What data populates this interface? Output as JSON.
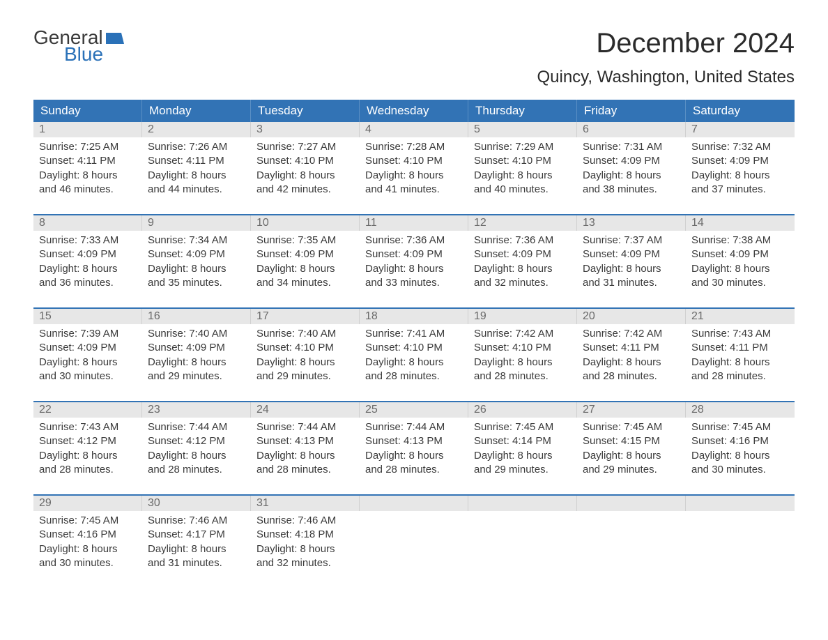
{
  "logo": {
    "line1": "General",
    "line2": "Blue"
  },
  "title": "December 2024",
  "location": "Quincy, Washington, United States",
  "colors": {
    "header_bg": "#3273b5",
    "header_text": "#ffffff",
    "daynum_bg": "#e7e7e7",
    "daynum_text": "#6a6a6a",
    "body_text": "#3a3a3a",
    "week_border": "#3273b5",
    "background": "#ffffff",
    "logo_blue": "#2a71b8"
  },
  "typography": {
    "title_fontsize": 40,
    "location_fontsize": 24,
    "dow_fontsize": 17,
    "daynum_fontsize": 16,
    "body_fontsize": 15,
    "logo_fontsize": 28
  },
  "days_of_week": [
    "Sunday",
    "Monday",
    "Tuesday",
    "Wednesday",
    "Thursday",
    "Friday",
    "Saturday"
  ],
  "weeks": [
    [
      {
        "n": "1",
        "sunrise": "Sunrise: 7:25 AM",
        "sunset": "Sunset: 4:11 PM",
        "d1": "Daylight: 8 hours",
        "d2": "and 46 minutes."
      },
      {
        "n": "2",
        "sunrise": "Sunrise: 7:26 AM",
        "sunset": "Sunset: 4:11 PM",
        "d1": "Daylight: 8 hours",
        "d2": "and 44 minutes."
      },
      {
        "n": "3",
        "sunrise": "Sunrise: 7:27 AM",
        "sunset": "Sunset: 4:10 PM",
        "d1": "Daylight: 8 hours",
        "d2": "and 42 minutes."
      },
      {
        "n": "4",
        "sunrise": "Sunrise: 7:28 AM",
        "sunset": "Sunset: 4:10 PM",
        "d1": "Daylight: 8 hours",
        "d2": "and 41 minutes."
      },
      {
        "n": "5",
        "sunrise": "Sunrise: 7:29 AM",
        "sunset": "Sunset: 4:10 PM",
        "d1": "Daylight: 8 hours",
        "d2": "and 40 minutes."
      },
      {
        "n": "6",
        "sunrise": "Sunrise: 7:31 AM",
        "sunset": "Sunset: 4:09 PM",
        "d1": "Daylight: 8 hours",
        "d2": "and 38 minutes."
      },
      {
        "n": "7",
        "sunrise": "Sunrise: 7:32 AM",
        "sunset": "Sunset: 4:09 PM",
        "d1": "Daylight: 8 hours",
        "d2": "and 37 minutes."
      }
    ],
    [
      {
        "n": "8",
        "sunrise": "Sunrise: 7:33 AM",
        "sunset": "Sunset: 4:09 PM",
        "d1": "Daylight: 8 hours",
        "d2": "and 36 minutes."
      },
      {
        "n": "9",
        "sunrise": "Sunrise: 7:34 AM",
        "sunset": "Sunset: 4:09 PM",
        "d1": "Daylight: 8 hours",
        "d2": "and 35 minutes."
      },
      {
        "n": "10",
        "sunrise": "Sunrise: 7:35 AM",
        "sunset": "Sunset: 4:09 PM",
        "d1": "Daylight: 8 hours",
        "d2": "and 34 minutes."
      },
      {
        "n": "11",
        "sunrise": "Sunrise: 7:36 AM",
        "sunset": "Sunset: 4:09 PM",
        "d1": "Daylight: 8 hours",
        "d2": "and 33 minutes."
      },
      {
        "n": "12",
        "sunrise": "Sunrise: 7:36 AM",
        "sunset": "Sunset: 4:09 PM",
        "d1": "Daylight: 8 hours",
        "d2": "and 32 minutes."
      },
      {
        "n": "13",
        "sunrise": "Sunrise: 7:37 AM",
        "sunset": "Sunset: 4:09 PM",
        "d1": "Daylight: 8 hours",
        "d2": "and 31 minutes."
      },
      {
        "n": "14",
        "sunrise": "Sunrise: 7:38 AM",
        "sunset": "Sunset: 4:09 PM",
        "d1": "Daylight: 8 hours",
        "d2": "and 30 minutes."
      }
    ],
    [
      {
        "n": "15",
        "sunrise": "Sunrise: 7:39 AM",
        "sunset": "Sunset: 4:09 PM",
        "d1": "Daylight: 8 hours",
        "d2": "and 30 minutes."
      },
      {
        "n": "16",
        "sunrise": "Sunrise: 7:40 AM",
        "sunset": "Sunset: 4:09 PM",
        "d1": "Daylight: 8 hours",
        "d2": "and 29 minutes."
      },
      {
        "n": "17",
        "sunrise": "Sunrise: 7:40 AM",
        "sunset": "Sunset: 4:10 PM",
        "d1": "Daylight: 8 hours",
        "d2": "and 29 minutes."
      },
      {
        "n": "18",
        "sunrise": "Sunrise: 7:41 AM",
        "sunset": "Sunset: 4:10 PM",
        "d1": "Daylight: 8 hours",
        "d2": "and 28 minutes."
      },
      {
        "n": "19",
        "sunrise": "Sunrise: 7:42 AM",
        "sunset": "Sunset: 4:10 PM",
        "d1": "Daylight: 8 hours",
        "d2": "and 28 minutes."
      },
      {
        "n": "20",
        "sunrise": "Sunrise: 7:42 AM",
        "sunset": "Sunset: 4:11 PM",
        "d1": "Daylight: 8 hours",
        "d2": "and 28 minutes."
      },
      {
        "n": "21",
        "sunrise": "Sunrise: 7:43 AM",
        "sunset": "Sunset: 4:11 PM",
        "d1": "Daylight: 8 hours",
        "d2": "and 28 minutes."
      }
    ],
    [
      {
        "n": "22",
        "sunrise": "Sunrise: 7:43 AM",
        "sunset": "Sunset: 4:12 PM",
        "d1": "Daylight: 8 hours",
        "d2": "and 28 minutes."
      },
      {
        "n": "23",
        "sunrise": "Sunrise: 7:44 AM",
        "sunset": "Sunset: 4:12 PM",
        "d1": "Daylight: 8 hours",
        "d2": "and 28 minutes."
      },
      {
        "n": "24",
        "sunrise": "Sunrise: 7:44 AM",
        "sunset": "Sunset: 4:13 PM",
        "d1": "Daylight: 8 hours",
        "d2": "and 28 minutes."
      },
      {
        "n": "25",
        "sunrise": "Sunrise: 7:44 AM",
        "sunset": "Sunset: 4:13 PM",
        "d1": "Daylight: 8 hours",
        "d2": "and 28 minutes."
      },
      {
        "n": "26",
        "sunrise": "Sunrise: 7:45 AM",
        "sunset": "Sunset: 4:14 PM",
        "d1": "Daylight: 8 hours",
        "d2": "and 29 minutes."
      },
      {
        "n": "27",
        "sunrise": "Sunrise: 7:45 AM",
        "sunset": "Sunset: 4:15 PM",
        "d1": "Daylight: 8 hours",
        "d2": "and 29 minutes."
      },
      {
        "n": "28",
        "sunrise": "Sunrise: 7:45 AM",
        "sunset": "Sunset: 4:16 PM",
        "d1": "Daylight: 8 hours",
        "d2": "and 30 minutes."
      }
    ],
    [
      {
        "n": "29",
        "sunrise": "Sunrise: 7:45 AM",
        "sunset": "Sunset: 4:16 PM",
        "d1": "Daylight: 8 hours",
        "d2": "and 30 minutes."
      },
      {
        "n": "30",
        "sunrise": "Sunrise: 7:46 AM",
        "sunset": "Sunset: 4:17 PM",
        "d1": "Daylight: 8 hours",
        "d2": "and 31 minutes."
      },
      {
        "n": "31",
        "sunrise": "Sunrise: 7:46 AM",
        "sunset": "Sunset: 4:18 PM",
        "d1": "Daylight: 8 hours",
        "d2": "and 32 minutes."
      },
      {
        "n": "",
        "sunrise": "",
        "sunset": "",
        "d1": "",
        "d2": "",
        "empty": true
      },
      {
        "n": "",
        "sunrise": "",
        "sunset": "",
        "d1": "",
        "d2": "",
        "empty": true
      },
      {
        "n": "",
        "sunrise": "",
        "sunset": "",
        "d1": "",
        "d2": "",
        "empty": true
      },
      {
        "n": "",
        "sunrise": "",
        "sunset": "",
        "d1": "",
        "d2": "",
        "empty": true
      }
    ]
  ]
}
